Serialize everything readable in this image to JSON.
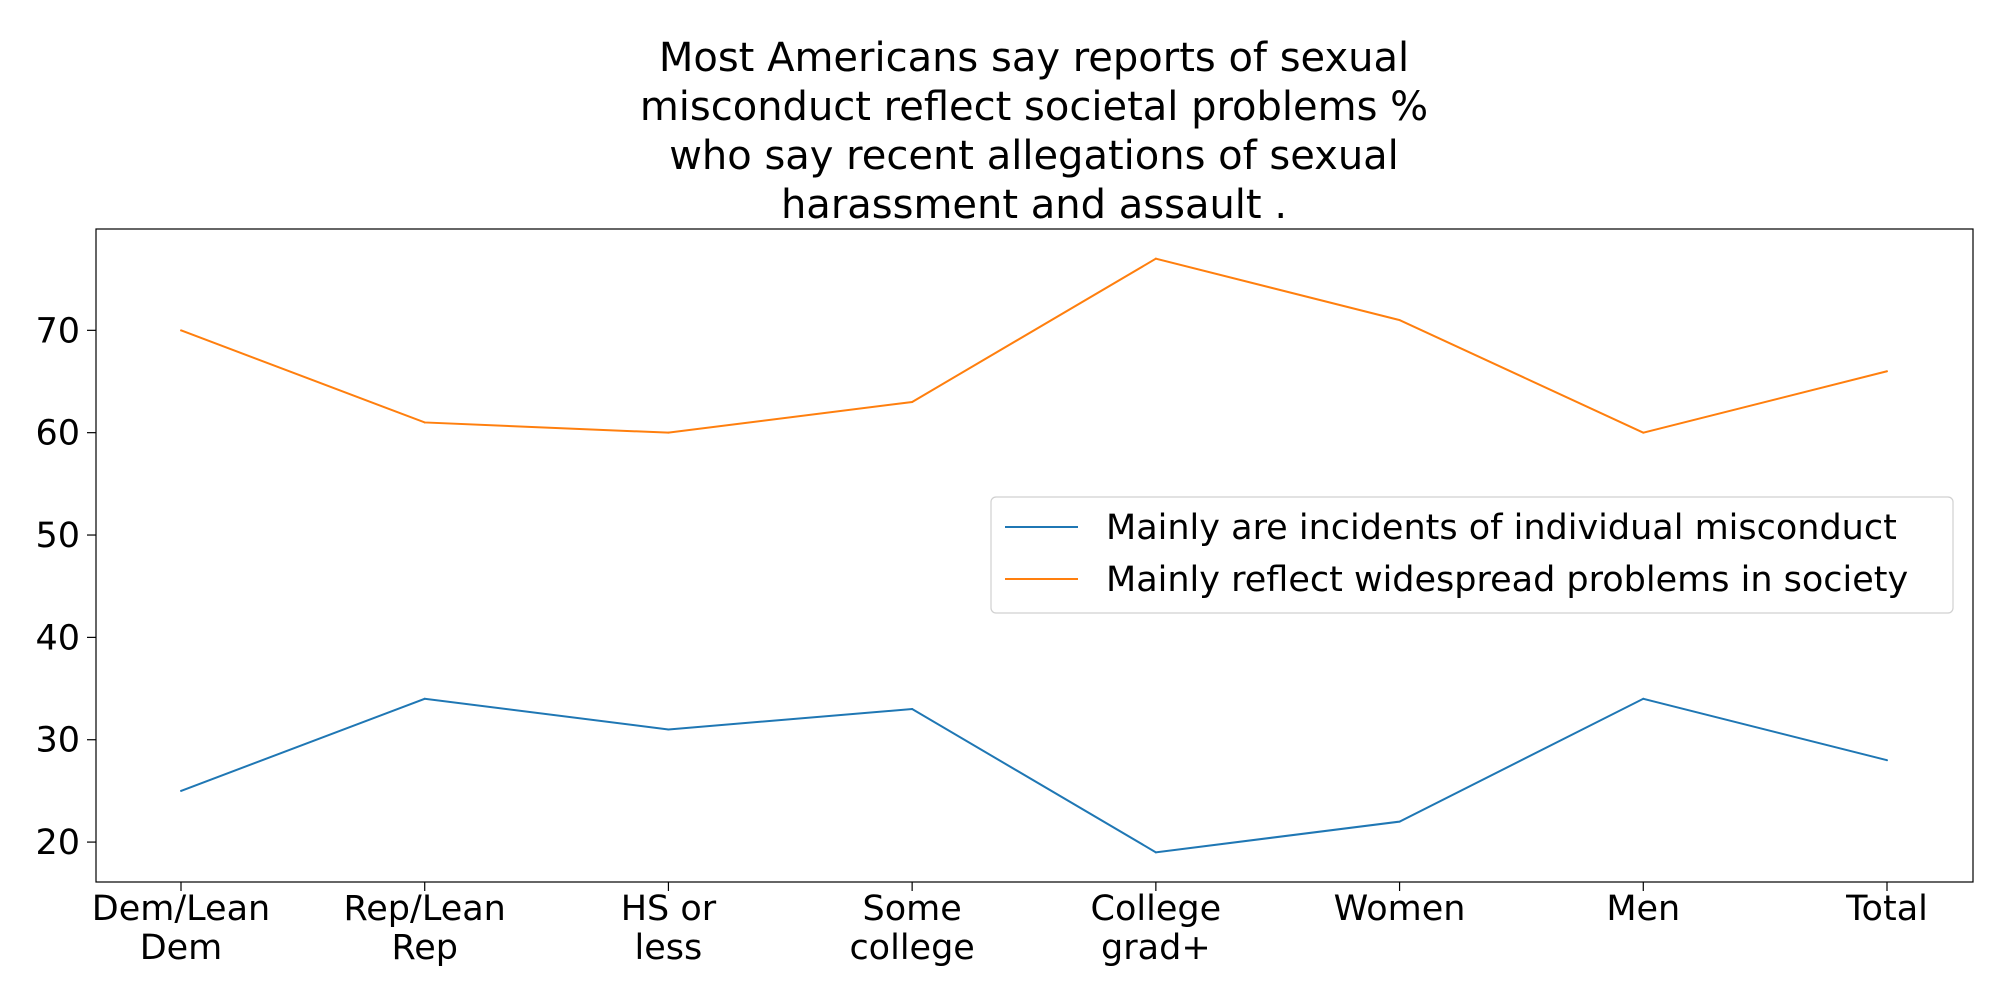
{
  "chart_data": {
    "type": "line",
    "title_lines": [
      "Most Americans say reports of sexual",
      "misconduct reflect societal problems %",
      "who say recent allegations of sexual",
      "harassment and assault ."
    ],
    "xlabel": "",
    "ylabel": "",
    "categories": [
      [
        "Dem/Lean",
        "Dem"
      ],
      [
        "Rep/Lean",
        "Rep"
      ],
      [
        "HS or",
        "less"
      ],
      [
        "Some",
        "college"
      ],
      [
        "College",
        "grad+"
      ],
      [
        "Women"
      ],
      [
        "Men"
      ],
      [
        "Total"
      ]
    ],
    "ylim": [
      16.1,
      79.9
    ],
    "yticks": [
      20,
      30,
      40,
      50,
      60,
      70
    ],
    "grid": false,
    "legend_position": "center-right",
    "series": [
      {
        "name": "Mainly are incidents of individual misconduct",
        "color": "#1f77b4",
        "values": [
          25,
          34,
          31,
          33,
          19,
          22,
          34,
          28
        ]
      },
      {
        "name": "Mainly reflect widespread problems in society",
        "color": "#ff7f0e",
        "values": [
          70,
          61,
          60,
          63,
          77,
          71,
          60,
          66
        ]
      }
    ]
  }
}
